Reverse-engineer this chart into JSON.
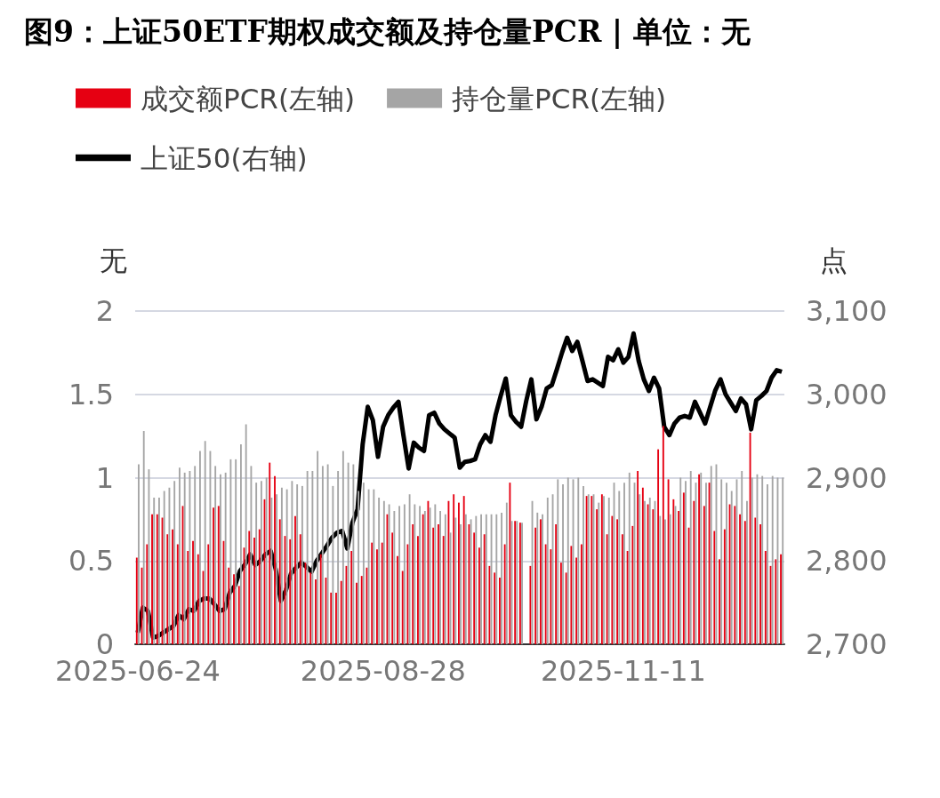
{
  "chart_data": {
    "type": "bar",
    "title": "图9：上证50ETF期权成交额及持仓量PCR | 单位：无",
    "categories": [
      "2025-06-24",
      null,
      null,
      null,
      null,
      null,
      null,
      null,
      null,
      null,
      null,
      null,
      null,
      null,
      null,
      null,
      null,
      null,
      null,
      null,
      null,
      null,
      null,
      null,
      null,
      null,
      null,
      null,
      null,
      null,
      null,
      null,
      null,
      null,
      null,
      null,
      null,
      null,
      null,
      null,
      null,
      null,
      null,
      null,
      null,
      null,
      null,
      null,
      "2025-08-28",
      null,
      null,
      null,
      null,
      null,
      null,
      null,
      null,
      null,
      null,
      null,
      null,
      null,
      null,
      null,
      null,
      null,
      null,
      null,
      null,
      null,
      null,
      null,
      null,
      null,
      null,
      null,
      null,
      null,
      null,
      null,
      null,
      null,
      null,
      null,
      null,
      null,
      null,
      null,
      null,
      null,
      null,
      null,
      null,
      null,
      null,
      "2025-11-11",
      null,
      null,
      null,
      null,
      null,
      null,
      null,
      null,
      null,
      null,
      null,
      null,
      null,
      null,
      null,
      null,
      null,
      null,
      null,
      null,
      null,
      null,
      null,
      null,
      null,
      null,
      null,
      null,
      null,
      null,
      null
    ],
    "series": [
      {
        "name": "成交额PCR(左轴)",
        "color": "#e60012",
        "values": [
          0.52,
          0.46,
          0.6,
          0.78,
          0.78,
          0.76,
          0.66,
          0.69,
          0.6,
          0.83,
          0.56,
          0.62,
          0.54,
          0.44,
          0.6,
          0.82,
          0.83,
          0.62,
          0.46,
          0.42,
          0.35,
          0.58,
          0.68,
          0.64,
          0.69,
          0.87,
          1.09,
          1.01,
          0.75,
          0.65,
          0.63,
          0.77,
          0.66,
          0.49,
          0.43,
          0.39,
          0.54,
          0.4,
          0.31,
          0.31,
          0.38,
          0.47,
          0.56,
          0.37,
          0.41,
          0.46,
          0.61,
          0.57,
          0.61,
          0.78,
          0.67,
          0.53,
          0.44,
          0.6,
          0.72,
          0.65,
          0.78,
          0.86,
          0.7,
          0.72,
          0.65,
          0.86,
          0.9,
          0.85,
          0.89,
          0.72,
          0.67,
          0.58,
          0.66,
          0.47,
          0.43,
          0.4,
          0.6,
          0.97,
          0.74,
          0.73,
          null,
          0.47,
          0.7,
          0.75,
          0.6,
          0.57,
          0.72,
          0.49,
          0.43,
          0.59,
          0.52,
          0.6,
          0.89,
          0.89,
          0.81,
          0.9,
          0.66,
          0.77,
          0.75,
          0.66,
          0.56,
          0.71,
          1.04,
          0.94,
          0.84,
          0.81,
          1.17,
          1.31,
          0.99,
          0.87,
          0.8,
          0.91,
          0.7,
          0.86,
          1.02,
          0.83,
          0.97,
          0.68,
          0.51,
          0.69,
          0.84,
          0.83,
          0.78,
          0.74,
          1.27,
          0.76,
          0.72,
          0.56,
          0.47,
          0.51,
          0.54
        ]
      },
      {
        "name": "持仓量PCR(左轴)",
        "color": "#a5a5a5",
        "values": [
          1.08,
          1.28,
          1.05,
          0.88,
          0.88,
          0.92,
          0.94,
          0.98,
          1.06,
          1.03,
          1.04,
          1.07,
          1.16,
          1.22,
          1.16,
          1.07,
          1.02,
          1.03,
          1.11,
          1.11,
          1.2,
          1.32,
          1.07,
          0.97,
          0.98,
          1.0,
          0.88,
          0.9,
          0.94,
          0.93,
          0.98,
          0.96,
          0.95,
          1.04,
          1.04,
          1.16,
          1.07,
          1.08,
          0.95,
          1.04,
          1.16,
          1.09,
          1.08,
          0.92,
          0.97,
          0.93,
          0.93,
          0.88,
          0.86,
          0.84,
          0.8,
          0.83,
          0.84,
          0.9,
          0.84,
          0.83,
          0.8,
          0.82,
          0.84,
          0.8,
          0.78,
          0.67,
          0.76,
          0.72,
          0.78,
          0.75,
          0.77,
          0.78,
          0.78,
          0.78,
          0.78,
          0.79,
          0.85,
          0.74,
          0.74,
          0.73,
          null,
          0.86,
          0.79,
          0.78,
          0.88,
          0.9,
          0.99,
          0.96,
          1.0,
          0.99,
          1.0,
          0.95,
          0.9,
          0.9,
          0.85,
          0.89,
          0.88,
          0.97,
          0.92,
          0.97,
          1.03,
          0.97,
          0.9,
          0.86,
          0.88,
          0.86,
          0.77,
          0.75,
          0.78,
          0.83,
          1.0,
          0.98,
          1.04,
          0.97,
          1.03,
          0.97,
          1.07,
          1.08,
          0.99,
          0.97,
          0.92,
          0.99,
          1.04,
          0.86,
          1.0,
          1.02,
          1.01,
          0.96,
          1.01,
          1.0,
          1.0
        ]
      },
      {
        "name": "上证50(右轴)",
        "type": "line",
        "axis": "y2",
        "color": "#000000",
        "values": [
          2714,
          2744,
          2740,
          2708,
          2710,
          2714,
          2718,
          2722,
          2735,
          2730,
          2742,
          2740,
          2752,
          2755,
          2755,
          2748,
          2740,
          2742,
          2762,
          2770,
          2788,
          2796,
          2808,
          2795,
          2800,
          2808,
          2812,
          2790,
          2752,
          2765,
          2785,
          2792,
          2798,
          2793,
          2787,
          2800,
          2809,
          2818,
          2828,
          2834,
          2836,
          2815,
          2846,
          2862,
          2940,
          2985,
          2969,
          2925,
          2961,
          2975,
          2984,
          2991,
          2950,
          2911,
          2942,
          2936,
          2932,
          2975,
          2978,
          2965,
          2958,
          2953,
          2948,
          2912,
          2919,
          2920,
          2922,
          2940,
          2951,
          2943,
          2975,
          2998,
          3019,
          2975,
          2967,
          2961,
          2992,
          3018,
          2970,
          2985,
          3007,
          3011,
          3030,
          3050,
          3068,
          3052,
          3063,
          3040,
          3016,
          3018,
          3014,
          3010,
          3045,
          3041,
          3054,
          3038,
          3045,
          3073,
          3040,
          3018,
          3004,
          3020,
          3007,
          2961,
          2951,
          2965,
          2972,
          2974,
          2972,
          2991,
          2978,
          2965,
          2985,
          3005,
          3018,
          3000,
          2990,
          2980,
          2995,
          2988,
          2958,
          2993,
          2998,
          3004,
          3020,
          3029,
          3027
        ]
      }
    ],
    "ylabel": "无",
    "y2label": "点",
    "ylim": [
      0,
      2
    ],
    "yticks": [
      0,
      0.5,
      1,
      1.5,
      2
    ],
    "y2lim": [
      2700,
      3100
    ],
    "y2ticks": [
      {
        "value": 2700,
        "label": "2,700"
      },
      {
        "value": 2800,
        "label": "2,800"
      },
      {
        "value": 2900,
        "label": "2,900"
      },
      {
        "value": 3000,
        "label": "3,000"
      },
      {
        "value": 3100,
        "label": "3,100"
      }
    ],
    "grid": "y",
    "legend": "top left"
  }
}
